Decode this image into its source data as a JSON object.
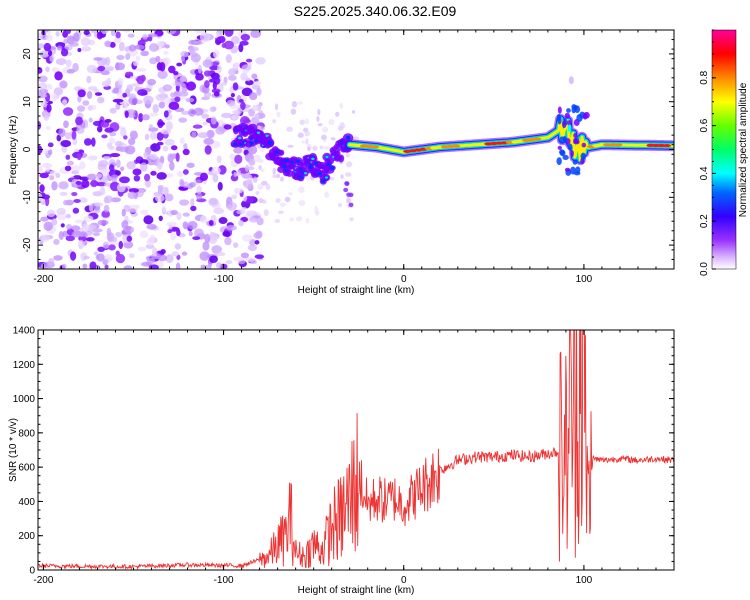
{
  "title": "S225.2025.340.06.32.E09",
  "chart_data": [
    {
      "type": "heatmap",
      "xlabel": "Height of straight line (km)",
      "ylabel": "Frequency (Hz)",
      "xlim": [
        -203,
        150
      ],
      "ylim": [
        -25,
        25
      ],
      "x_ticks": [
        -200,
        -100,
        0,
        100
      ],
      "y_ticks": [
        -20,
        -10,
        0,
        10,
        20
      ],
      "colorbar": {
        "label": "Normalized spectral amplitude",
        "range": [
          0,
          1
        ],
        "ticks": [
          0.0,
          0.2,
          0.4,
          0.6,
          0.8
        ],
        "tick_labels": [
          "0.0",
          "0.2",
          "0.4",
          "0.6",
          "0.8"
        ],
        "colors": [
          "#ffffff",
          "#cc99ff",
          "#7700ff",
          "#0000ff",
          "#00ffff",
          "#00ff00",
          "#ffff00",
          "#ff8800",
          "#ff0000",
          "#ff00aa"
        ]
      },
      "regions": [
        {
          "name": "noise field",
          "x_range": [
            -203,
            -85
          ],
          "f_range": [
            -25,
            25
          ]
        },
        {
          "name": "descending track",
          "points": [
            [
              -93,
              3
            ],
            [
              -85,
              3
            ],
            [
              -78,
              2
            ],
            [
              -72,
              -1
            ],
            [
              -66,
              -3
            ],
            [
              -58,
              -4
            ],
            [
              -52,
              -3
            ],
            [
              -45,
              -5
            ],
            [
              -40,
              -2
            ],
            [
              -35,
              0
            ],
            [
              -30,
              1
            ]
          ]
        },
        {
          "name": "carrier line",
          "points": [
            [
              -30,
              1
            ],
            [
              -15,
              0.5
            ],
            [
              0,
              -0.5
            ],
            [
              20,
              0.5
            ],
            [
              40,
              1
            ],
            [
              60,
              1.5
            ],
            [
              80,
              2.5
            ],
            [
              90,
              5
            ],
            [
              95,
              0
            ],
            [
              110,
              1
            ],
            [
              150,
              0.8
            ]
          ]
        }
      ]
    },
    {
      "type": "line",
      "xlabel": "Height of straight line (km)",
      "ylabel": "SNR (10 * v/v)",
      "xlim": [
        -203,
        150
      ],
      "ylim": [
        0,
        1400
      ],
      "x_ticks": [
        -200,
        -100,
        0,
        100
      ],
      "y_ticks": [
        0,
        200,
        400,
        600,
        800,
        1000,
        1200,
        1400
      ],
      "color": "#ee3333",
      "series": [
        {
          "name": "SNR",
          "x": [
            -203,
            -180,
            -150,
            -120,
            -90,
            -80,
            -75,
            -70,
            -65,
            -63,
            -60,
            -55,
            -50,
            -45,
            -40,
            -35,
            -30,
            -25,
            -20,
            -15,
            -10,
            -5,
            0,
            10,
            20,
            30,
            40,
            50,
            60,
            70,
            80,
            85,
            88,
            90,
            92,
            95,
            98,
            100,
            102,
            105,
            110,
            120,
            130,
            140,
            150
          ],
          "y": [
            25,
            22,
            20,
            30,
            25,
            60,
            80,
            150,
            200,
            320,
            100,
            80,
            150,
            120,
            250,
            300,
            400,
            550,
            380,
            420,
            400,
            420,
            380,
            480,
            580,
            640,
            660,
            660,
            670,
            660,
            680,
            690,
            700,
            680,
            900,
            1000,
            1300,
            1100,
            400,
            650,
            640,
            650,
            640,
            650,
            640
          ]
        }
      ]
    }
  ]
}
